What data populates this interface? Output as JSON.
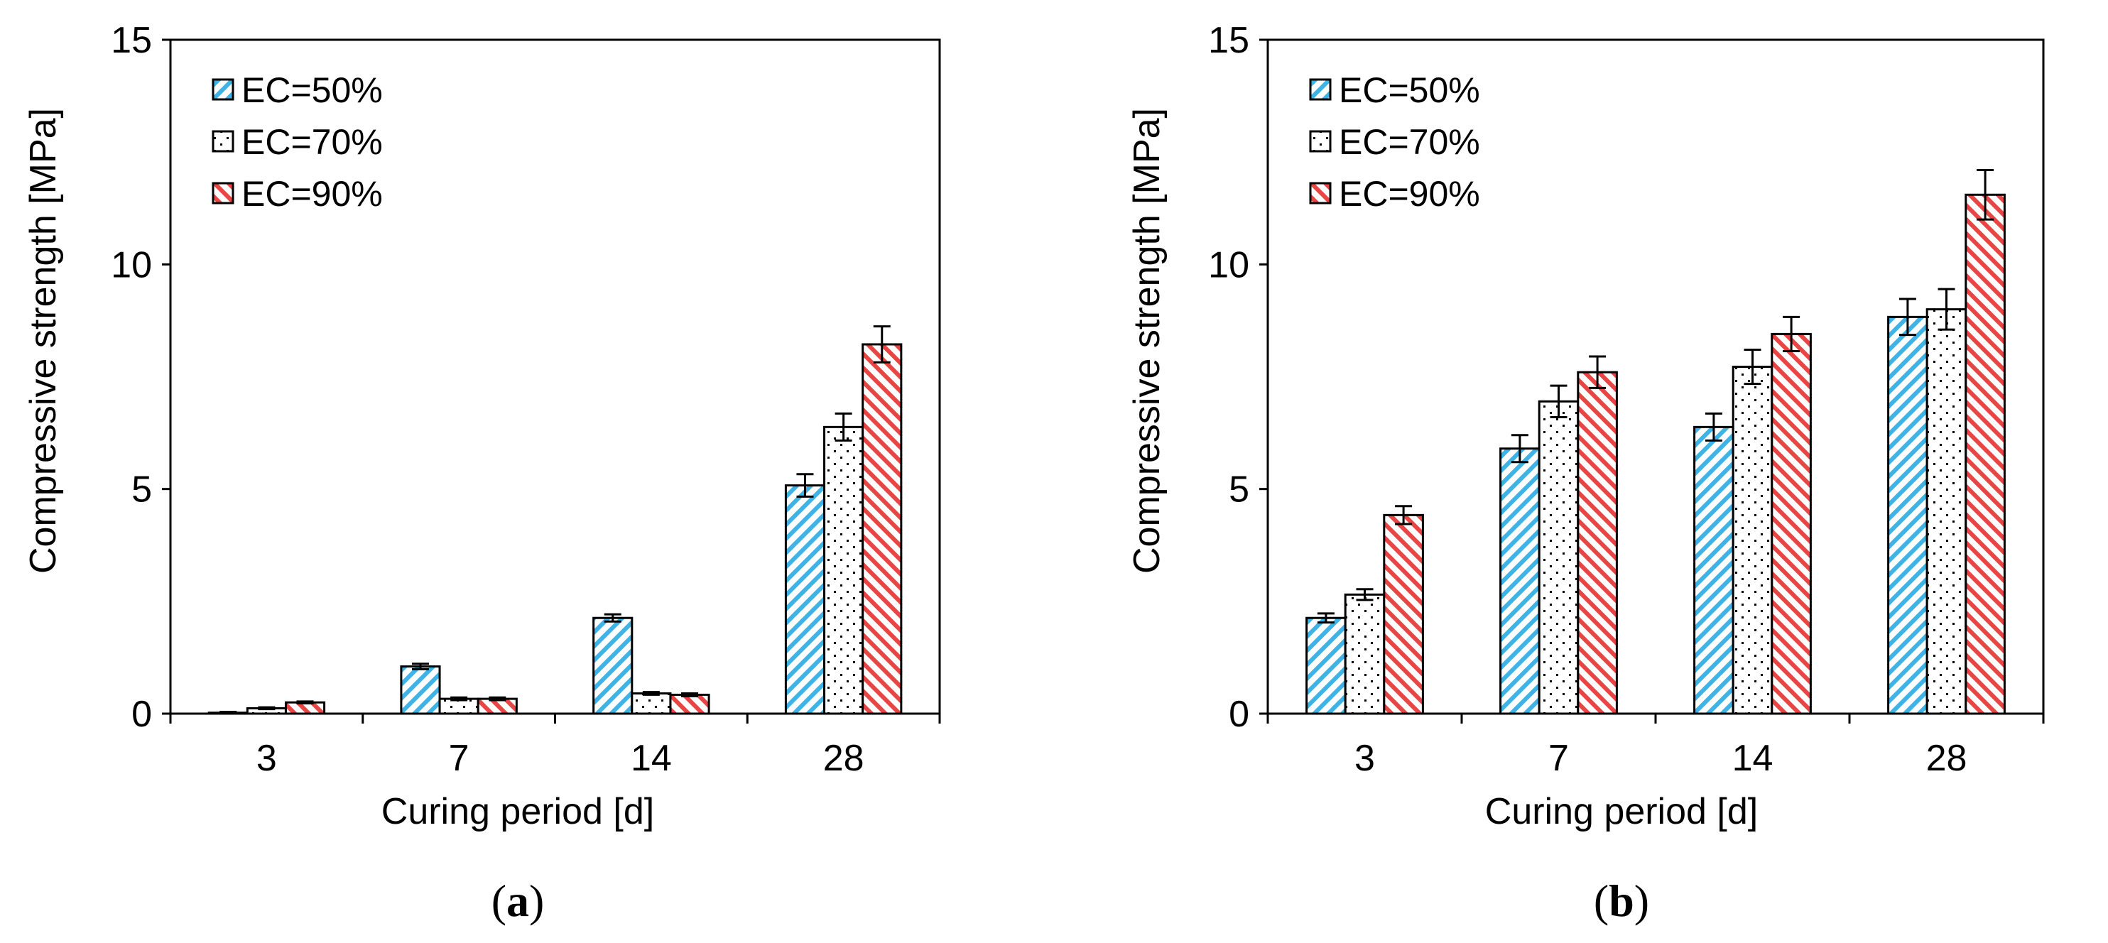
{
  "chart_data": [
    {
      "id": "a",
      "type": "bar",
      "caption": {
        "open": "(",
        "letter": "a",
        "close": ")"
      },
      "xlabel": "Curing period [d]",
      "ylabel": "Compressive strength [MPa]",
      "ylim": [
        0,
        15
      ],
      "yticks": [
        "0",
        "5",
        "10",
        "15"
      ],
      "categories": [
        "3",
        "7",
        "14",
        "28"
      ],
      "series": [
        {
          "name": "EC=50%",
          "pattern": "blue-hatch",
          "values": [
            0.02,
            1.05,
            2.13,
            5.08
          ],
          "errors": [
            0.02,
            0.06,
            0.08,
            0.25
          ]
        },
        {
          "name": "EC=70%",
          "pattern": "dots",
          "values": [
            0.12,
            0.33,
            0.45,
            6.38
          ],
          "errors": [
            0.02,
            0.03,
            0.03,
            0.3
          ]
        },
        {
          "name": "EC=90%",
          "pattern": "red-hatch",
          "values": [
            0.25,
            0.33,
            0.42,
            8.22
          ],
          "errors": [
            0.02,
            0.03,
            0.03,
            0.4
          ]
        }
      ]
    },
    {
      "id": "b",
      "type": "bar",
      "caption": {
        "open": "(",
        "letter": "b",
        "close": ")"
      },
      "xlabel": "Curing period [d]",
      "ylabel": "Compressive strength [MPa]",
      "ylim": [
        0,
        15
      ],
      "yticks": [
        "0",
        "5",
        "10",
        "15"
      ],
      "categories": [
        "3",
        "7",
        "14",
        "28"
      ],
      "series": [
        {
          "name": "EC=50%",
          "pattern": "blue-hatch",
          "values": [
            2.13,
            5.9,
            6.38,
            8.83
          ],
          "errors": [
            0.1,
            0.3,
            0.3,
            0.4
          ]
        },
        {
          "name": "EC=70%",
          "pattern": "dots",
          "values": [
            2.65,
            6.95,
            7.72,
            9.0
          ],
          "errors": [
            0.12,
            0.35,
            0.38,
            0.45
          ]
        },
        {
          "name": "EC=90%",
          "pattern": "red-hatch",
          "values": [
            4.42,
            7.6,
            8.45,
            11.55
          ],
          "errors": [
            0.2,
            0.35,
            0.38,
            0.55
          ]
        }
      ]
    }
  ],
  "colors": {
    "blue_hatch": "#3fb3e6",
    "red_hatch": "#e84545",
    "dots": "#000000",
    "axis": "#000000"
  }
}
